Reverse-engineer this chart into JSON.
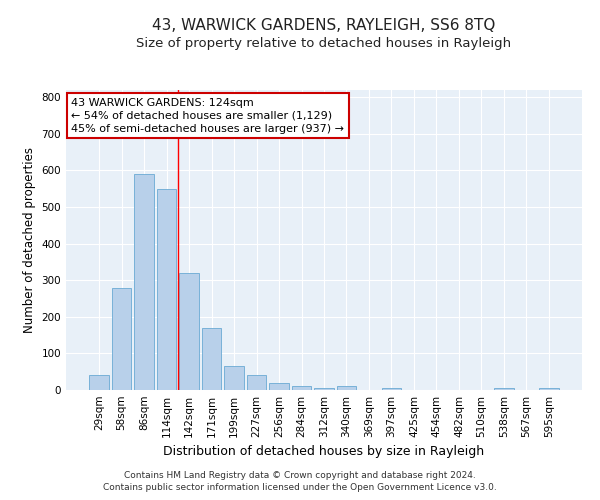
{
  "title": "43, WARWICK GARDENS, RAYLEIGH, SS6 8TQ",
  "subtitle": "Size of property relative to detached houses in Rayleigh",
  "xlabel": "Distribution of detached houses by size in Rayleigh",
  "ylabel": "Number of detached properties",
  "categories": [
    "29sqm",
    "58sqm",
    "86sqm",
    "114sqm",
    "142sqm",
    "171sqm",
    "199sqm",
    "227sqm",
    "256sqm",
    "284sqm",
    "312sqm",
    "340sqm",
    "369sqm",
    "397sqm",
    "425sqm",
    "454sqm",
    "482sqm",
    "510sqm",
    "538sqm",
    "567sqm",
    "595sqm"
  ],
  "values": [
    40,
    280,
    590,
    550,
    320,
    170,
    65,
    40,
    20,
    10,
    5,
    10,
    0,
    5,
    0,
    0,
    0,
    0,
    5,
    0,
    5
  ],
  "bar_color": "#b8d0ea",
  "bar_edge_color": "#6aaad4",
  "background_color": "#e8f0f8",
  "grid_color": "#ffffff",
  "red_line_x": 3.5,
  "annotation_text": "43 WARWICK GARDENS: 124sqm\n← 54% of detached houses are smaller (1,129)\n45% of semi-detached houses are larger (937) →",
  "annotation_box_color": "#ffffff",
  "annotation_box_edge": "#cc0000",
  "ylim": [
    0,
    820
  ],
  "yticks": [
    0,
    100,
    200,
    300,
    400,
    500,
    600,
    700,
    800
  ],
  "footer": "Contains HM Land Registry data © Crown copyright and database right 2024.\nContains public sector information licensed under the Open Government Licence v3.0.",
  "title_fontsize": 11,
  "subtitle_fontsize": 9.5,
  "xlabel_fontsize": 9,
  "ylabel_fontsize": 8.5,
  "tick_fontsize": 7.5,
  "annotation_fontsize": 8,
  "footer_fontsize": 6.5
}
